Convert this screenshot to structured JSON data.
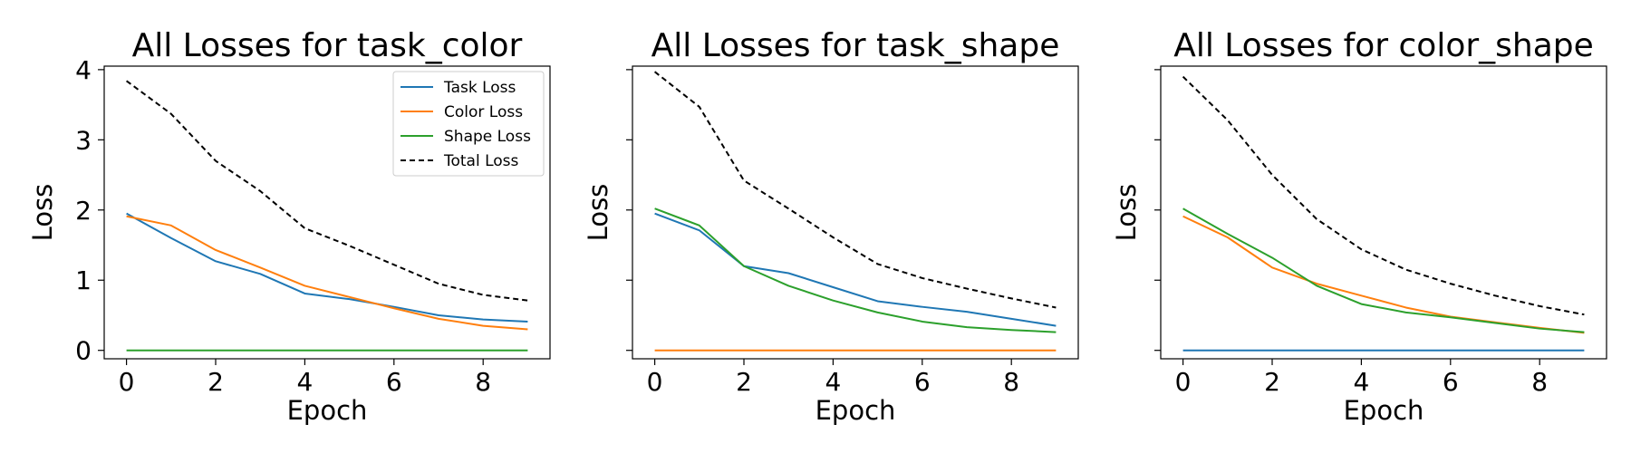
{
  "chart_data": [
    {
      "type": "line",
      "title": "All Losses for task_color",
      "xlabel": "Epoch",
      "ylabel": "Loss",
      "x": [
        0,
        1,
        2,
        3,
        4,
        5,
        6,
        7,
        8,
        9
      ],
      "xlim": [
        -0.5,
        9.5
      ],
      "ylim": [
        -0.12,
        4.05
      ],
      "xticks": [
        "0",
        "2",
        "4",
        "6",
        "8"
      ],
      "yticks": [
        "0",
        "1",
        "2",
        "3",
        "4"
      ],
      "show_yticklabels": true,
      "grid": false,
      "legend": "top-right",
      "series": [
        {
          "name": "Task Loss",
          "color": "#1f77b4",
          "dash": "solid",
          "values": [
            1.95,
            1.6,
            1.27,
            1.09,
            0.81,
            0.73,
            0.62,
            0.5,
            0.44,
            0.41
          ]
        },
        {
          "name": "Color Loss",
          "color": "#ff7f0e",
          "dash": "solid",
          "values": [
            1.91,
            1.78,
            1.43,
            1.18,
            0.92,
            0.76,
            0.6,
            0.45,
            0.35,
            0.3
          ]
        },
        {
          "name": "Shape Loss",
          "color": "#2ca02c",
          "dash": "solid",
          "values": [
            0.0,
            0.0,
            0.0,
            0.0,
            0.0,
            0.0,
            0.0,
            0.0,
            0.0,
            0.0
          ]
        },
        {
          "name": "Total Loss",
          "color": "#000000",
          "dash": "dashed",
          "values": [
            3.84,
            3.37,
            2.7,
            2.27,
            1.74,
            1.49,
            1.22,
            0.95,
            0.79,
            0.71
          ]
        }
      ]
    },
    {
      "type": "line",
      "title": "All Losses for task_shape",
      "xlabel": "Epoch",
      "ylabel": "Loss",
      "x": [
        0,
        1,
        2,
        3,
        4,
        5,
        6,
        7,
        8,
        9
      ],
      "xlim": [
        -0.5,
        9.5
      ],
      "ylim": [
        -0.12,
        4.05
      ],
      "xticks": [
        "0",
        "2",
        "4",
        "6",
        "8"
      ],
      "yticks": [
        "",
        "",
        "",
        "",
        ""
      ],
      "show_yticklabels": false,
      "grid": false,
      "series": [
        {
          "name": "Task Loss",
          "color": "#1f77b4",
          "dash": "solid",
          "values": [
            1.95,
            1.71,
            1.2,
            1.1,
            0.9,
            0.7,
            0.62,
            0.55,
            0.45,
            0.35
          ]
        },
        {
          "name": "Color Loss",
          "color": "#ff7f0e",
          "dash": "solid",
          "values": [
            0.0,
            0.0,
            0.0,
            0.0,
            0.0,
            0.0,
            0.0,
            0.0,
            0.0,
            0.0
          ]
        },
        {
          "name": "Shape Loss",
          "color": "#2ca02c",
          "dash": "solid",
          "values": [
            2.02,
            1.78,
            1.2,
            0.92,
            0.71,
            0.54,
            0.41,
            0.33,
            0.29,
            0.26
          ]
        },
        {
          "name": "Total Loss",
          "color": "#000000",
          "dash": "dashed",
          "values": [
            3.97,
            3.47,
            2.42,
            2.02,
            1.61,
            1.23,
            1.03,
            0.88,
            0.74,
            0.61
          ]
        }
      ]
    },
    {
      "type": "line",
      "title": "All Losses for color_shape",
      "xlabel": "Epoch",
      "ylabel": "Loss",
      "x": [
        0,
        1,
        2,
        3,
        4,
        5,
        6,
        7,
        8,
        9
      ],
      "xlim": [
        -0.5,
        9.5
      ],
      "ylim": [
        -0.12,
        4.05
      ],
      "xticks": [
        "0",
        "2",
        "4",
        "6",
        "8"
      ],
      "yticks": [
        "",
        "",
        "",
        "",
        ""
      ],
      "show_yticklabels": false,
      "grid": false,
      "series": [
        {
          "name": "Task Loss",
          "color": "#1f77b4",
          "dash": "solid",
          "values": [
            0.0,
            0.0,
            0.0,
            0.0,
            0.0,
            0.0,
            0.0,
            0.0,
            0.0,
            0.0
          ]
        },
        {
          "name": "Color Loss",
          "color": "#ff7f0e",
          "dash": "solid",
          "values": [
            1.91,
            1.61,
            1.18,
            0.95,
            0.78,
            0.61,
            0.48,
            0.4,
            0.32,
            0.25
          ]
        },
        {
          "name": "Shape Loss",
          "color": "#2ca02c",
          "dash": "solid",
          "values": [
            2.02,
            1.66,
            1.32,
            0.92,
            0.66,
            0.54,
            0.47,
            0.39,
            0.31,
            0.26
          ]
        },
        {
          "name": "Total Loss",
          "color": "#000000",
          "dash": "dashed",
          "values": [
            3.9,
            3.28,
            2.5,
            1.87,
            1.44,
            1.15,
            0.95,
            0.78,
            0.63,
            0.51
          ]
        }
      ]
    }
  ]
}
